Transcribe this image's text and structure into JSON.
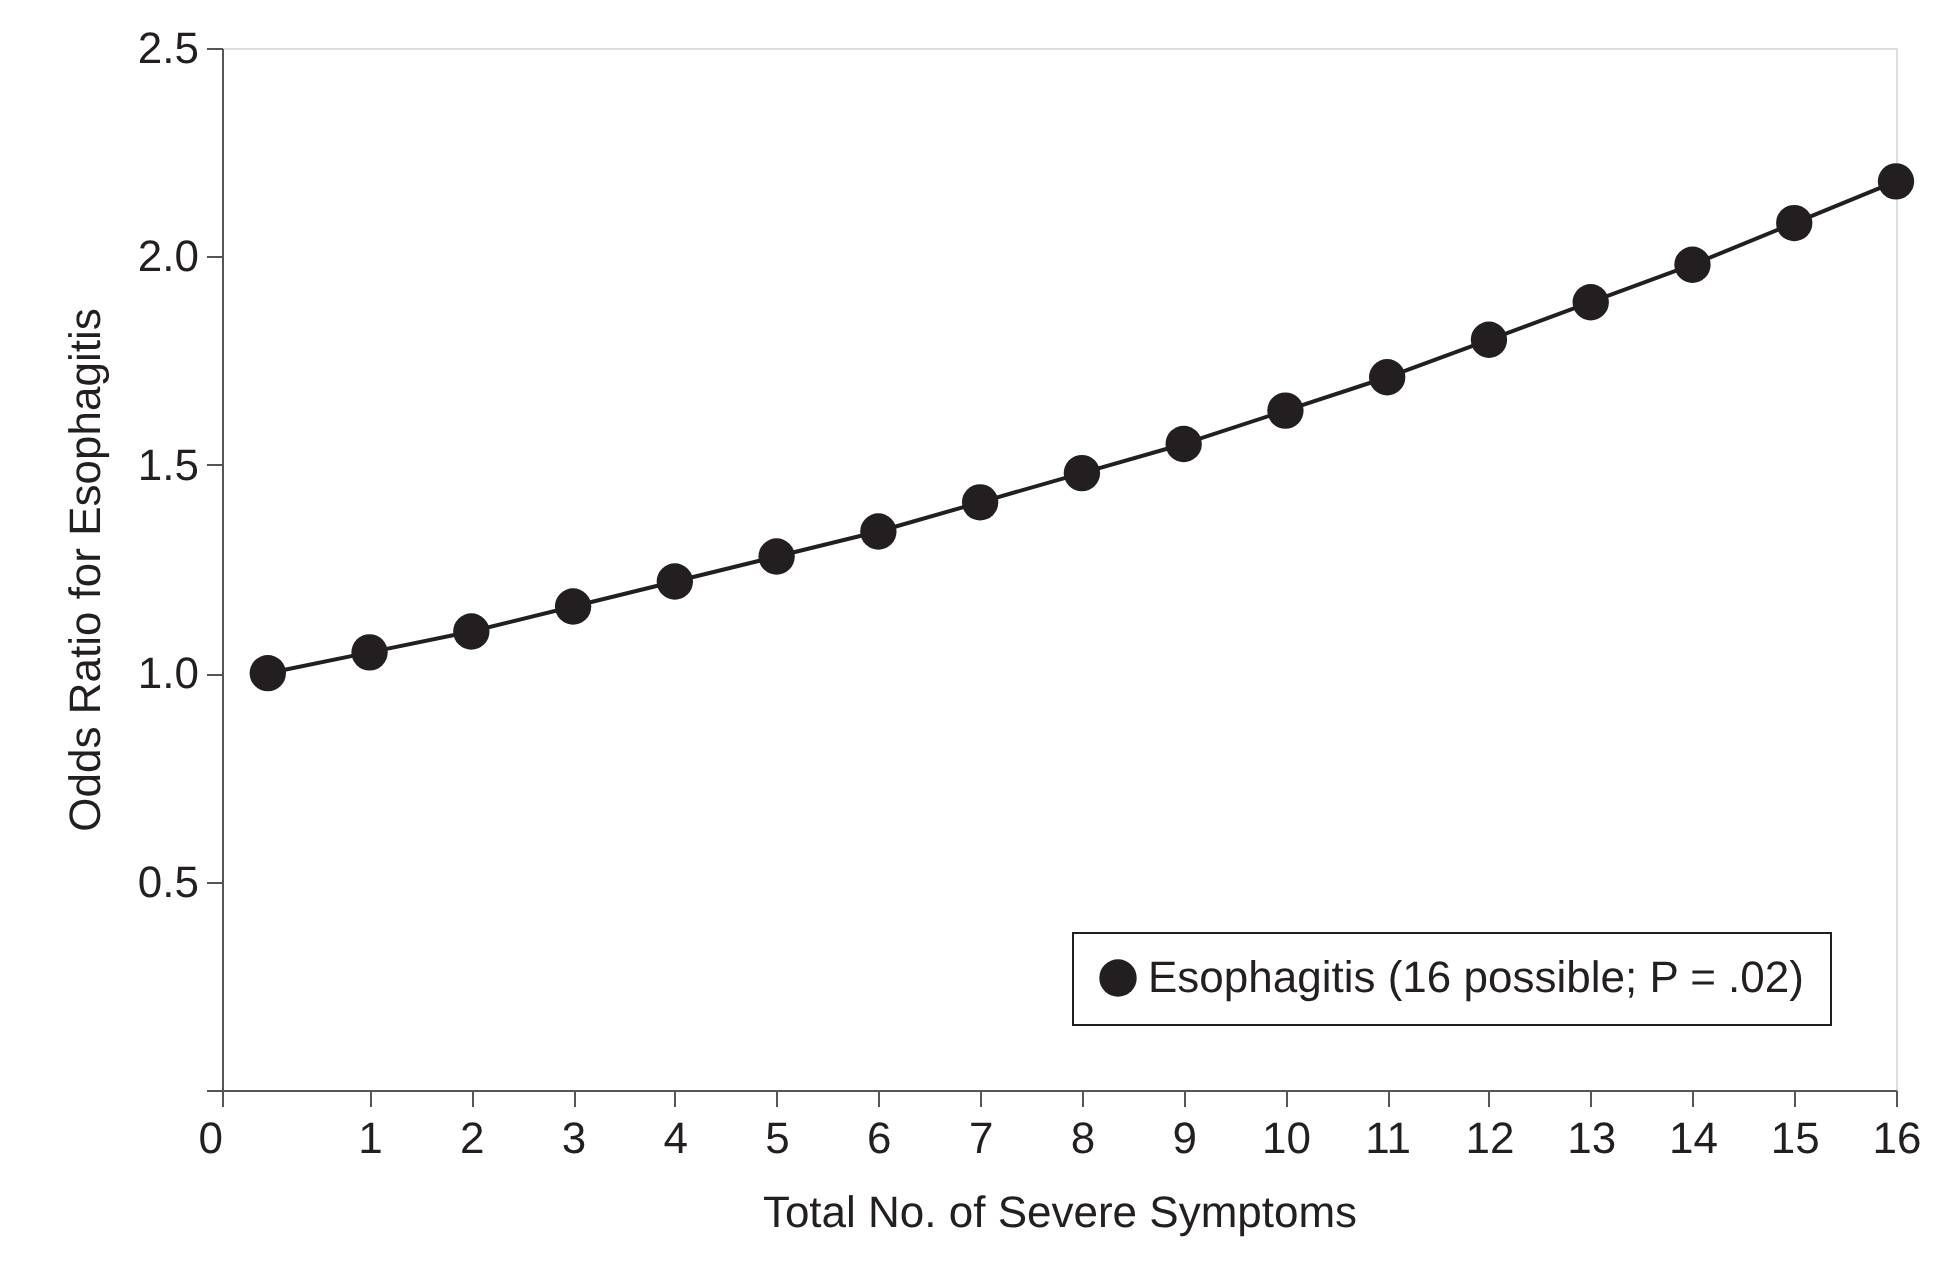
{
  "chart_data": {
    "type": "line",
    "xlabel": "Total No. of Severe Symptoms",
    "ylabel": "Odds Ratio for Esophagitis",
    "x": [
      0,
      1,
      2,
      3,
      4,
      5,
      6,
      7,
      8,
      9,
      10,
      11,
      12,
      13,
      14,
      15,
      16
    ],
    "series": [
      {
        "name": "Esophagitis (16 possible; P = .02)",
        "color": "#231f20",
        "values": [
          1.0,
          1.05,
          1.1,
          1.16,
          1.22,
          1.28,
          1.34,
          1.41,
          1.48,
          1.55,
          1.63,
          1.71,
          1.8,
          1.89,
          1.98,
          2.08,
          2.18
        ]
      }
    ],
    "xlim": [
      -0.45,
      16
    ],
    "xticks": [
      {
        "value": -0.45,
        "label": "0"
      },
      1,
      2,
      3,
      4,
      5,
      6,
      7,
      8,
      9,
      10,
      11,
      12,
      13,
      14,
      15,
      16
    ],
    "ylim": [
      0,
      2.5
    ],
    "yticks": [
      {
        "value": 0,
        "label": null
      },
      {
        "value": 0.5,
        "label": "0.5"
      },
      {
        "value": 1,
        "label": "1.0"
      },
      {
        "value": 1.5,
        "label": "1.5"
      },
      {
        "value": 2,
        "label": "2.0"
      },
      {
        "value": 2.5,
        "label": "2.5"
      }
    ],
    "marker": "circle",
    "line_style": "solid",
    "grid": false,
    "legend": "bottom right"
  }
}
